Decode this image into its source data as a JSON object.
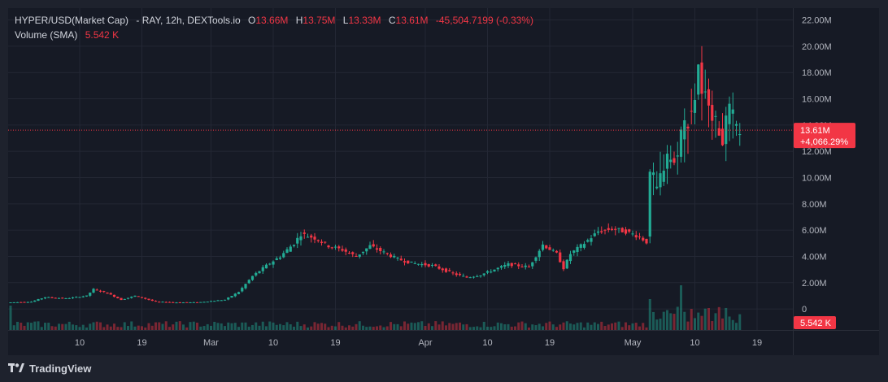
{
  "header": {
    "symbol": "HYPER/USD(Market Cap)",
    "source": "- RAY, 12h, DEXTools.io",
    "o_label": "O",
    "o_value": "13.66M",
    "h_label": "H",
    "h_value": "13.75M",
    "l_label": "L",
    "l_value": "13.33M",
    "c_label": "C",
    "c_value": "13.61M",
    "change": "-45,504.7199 (-0.33%)",
    "volume_label": "Volume (SMA)",
    "volume_value": "5.542 K"
  },
  "price_tag": {
    "value": "13.61M",
    "change": "+4,066.29%"
  },
  "volume_tag": {
    "value": "5.542 K"
  },
  "branding": {
    "text": "TradingView"
  },
  "colors": {
    "up": "#22ab94",
    "down": "#f23645",
    "grid": "#232734",
    "text": "#b2b5be"
  },
  "chart_data": {
    "type": "candlestick",
    "y_ticks": [
      {
        "value": 22,
        "label": "22.00M"
      },
      {
        "value": 20,
        "label": "20.00M"
      },
      {
        "value": 18,
        "label": "18.00M"
      },
      {
        "value": 16,
        "label": "16.00M"
      },
      {
        "value": 14,
        "label": "14.00M"
      },
      {
        "value": 12,
        "label": "12.00M"
      },
      {
        "value": 10,
        "label": "10.00M"
      },
      {
        "value": 8,
        "label": "8.00M"
      },
      {
        "value": 6,
        "label": "6.00M"
      },
      {
        "value": 4,
        "label": "4.00M"
      },
      {
        "value": 2,
        "label": "2.00M"
      },
      {
        "value": 0,
        "label": "0"
      }
    ],
    "x_ticks": [
      {
        "label": "10",
        "day": 10
      },
      {
        "label": "19",
        "day": 19
      },
      {
        "label": "Mar",
        "day": 29
      },
      {
        "label": "10",
        "day": 38
      },
      {
        "label": "19",
        "day": 47
      },
      {
        "label": "Apr",
        "day": 60
      },
      {
        "label": "10",
        "day": 69
      },
      {
        "label": "19",
        "day": 78
      },
      {
        "label": "May",
        "day": 90
      },
      {
        "label": "10",
        "day": 99
      },
      {
        "label": "19",
        "day": 108
      }
    ],
    "price_path": [
      [
        0,
        0.5
      ],
      [
        3,
        0.55
      ],
      [
        5,
        0.9
      ],
      [
        8,
        0.8
      ],
      [
        11,
        1.0
      ],
      [
        12,
        1.5
      ],
      [
        14,
        1.2
      ],
      [
        16,
        0.7
      ],
      [
        18,
        1.0
      ],
      [
        21,
        0.55
      ],
      [
        24,
        0.5
      ],
      [
        27,
        0.5
      ],
      [
        31,
        0.7
      ],
      [
        33,
        1.3
      ],
      [
        35,
        2.5
      ],
      [
        37,
        3.3
      ],
      [
        39,
        4.0
      ],
      [
        41,
        5.0
      ],
      [
        42,
        5.7
      ],
      [
        44,
        5.4
      ],
      [
        46,
        4.8
      ],
      [
        48,
        4.5
      ],
      [
        50,
        4.0
      ],
      [
        52,
        4.8
      ],
      [
        54,
        4.3
      ],
      [
        56,
        3.8
      ],
      [
        58,
        3.5
      ],
      [
        61,
        3.3
      ],
      [
        64,
        2.7
      ],
      [
        66,
        2.4
      ],
      [
        68,
        2.6
      ],
      [
        70,
        3.0
      ],
      [
        72,
        3.4
      ],
      [
        75,
        3.2
      ],
      [
        77,
        4.9
      ],
      [
        79,
        4.2
      ],
      [
        80,
        3.1
      ],
      [
        81,
        4.2
      ],
      [
        83,
        5.0
      ],
      [
        85,
        5.9
      ],
      [
        87,
        6.1
      ],
      [
        89,
        5.9
      ],
      [
        91,
        5.5
      ],
      [
        92,
        5.1
      ],
      [
        92.5,
        10.5
      ],
      [
        93.5,
        9.0
      ],
      [
        95,
        12.0
      ],
      [
        96,
        11.0
      ],
      [
        97,
        13.5
      ],
      [
        98,
        14.5
      ],
      [
        99,
        16.0
      ],
      [
        99.5,
        18.8
      ],
      [
        100,
        15.8
      ],
      [
        101,
        16.2
      ],
      [
        102,
        14.0
      ],
      [
        103,
        13.0
      ],
      [
        104,
        15.0
      ],
      [
        105,
        13.7
      ],
      [
        105.5,
        13.61
      ]
    ],
    "day_max": 110,
    "y_range": [
      -1.6,
      22.9
    ]
  }
}
